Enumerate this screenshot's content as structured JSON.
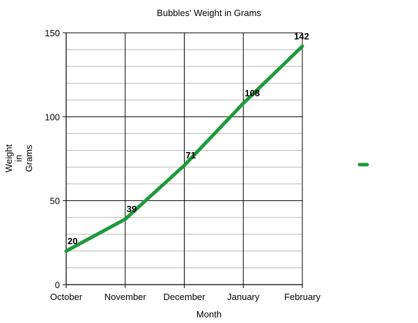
{
  "chart_data": {
    "type": "line",
    "title": "Bubbles' Weight in Grams",
    "xlabel": "Month",
    "ylabel_lines": [
      "Weight",
      "in",
      "Grams"
    ],
    "categories": [
      "October",
      "November",
      "December",
      "January",
      "February"
    ],
    "series": [
      {
        "name": "",
        "values": [
          20,
          39,
          71,
          108,
          142
        ],
        "color": "#1e9a3c"
      }
    ],
    "ylim": [
      0,
      150
    ],
    "yticks": [
      0,
      50,
      100,
      150
    ],
    "minor_step": 10,
    "grid": true,
    "legend": "right"
  }
}
